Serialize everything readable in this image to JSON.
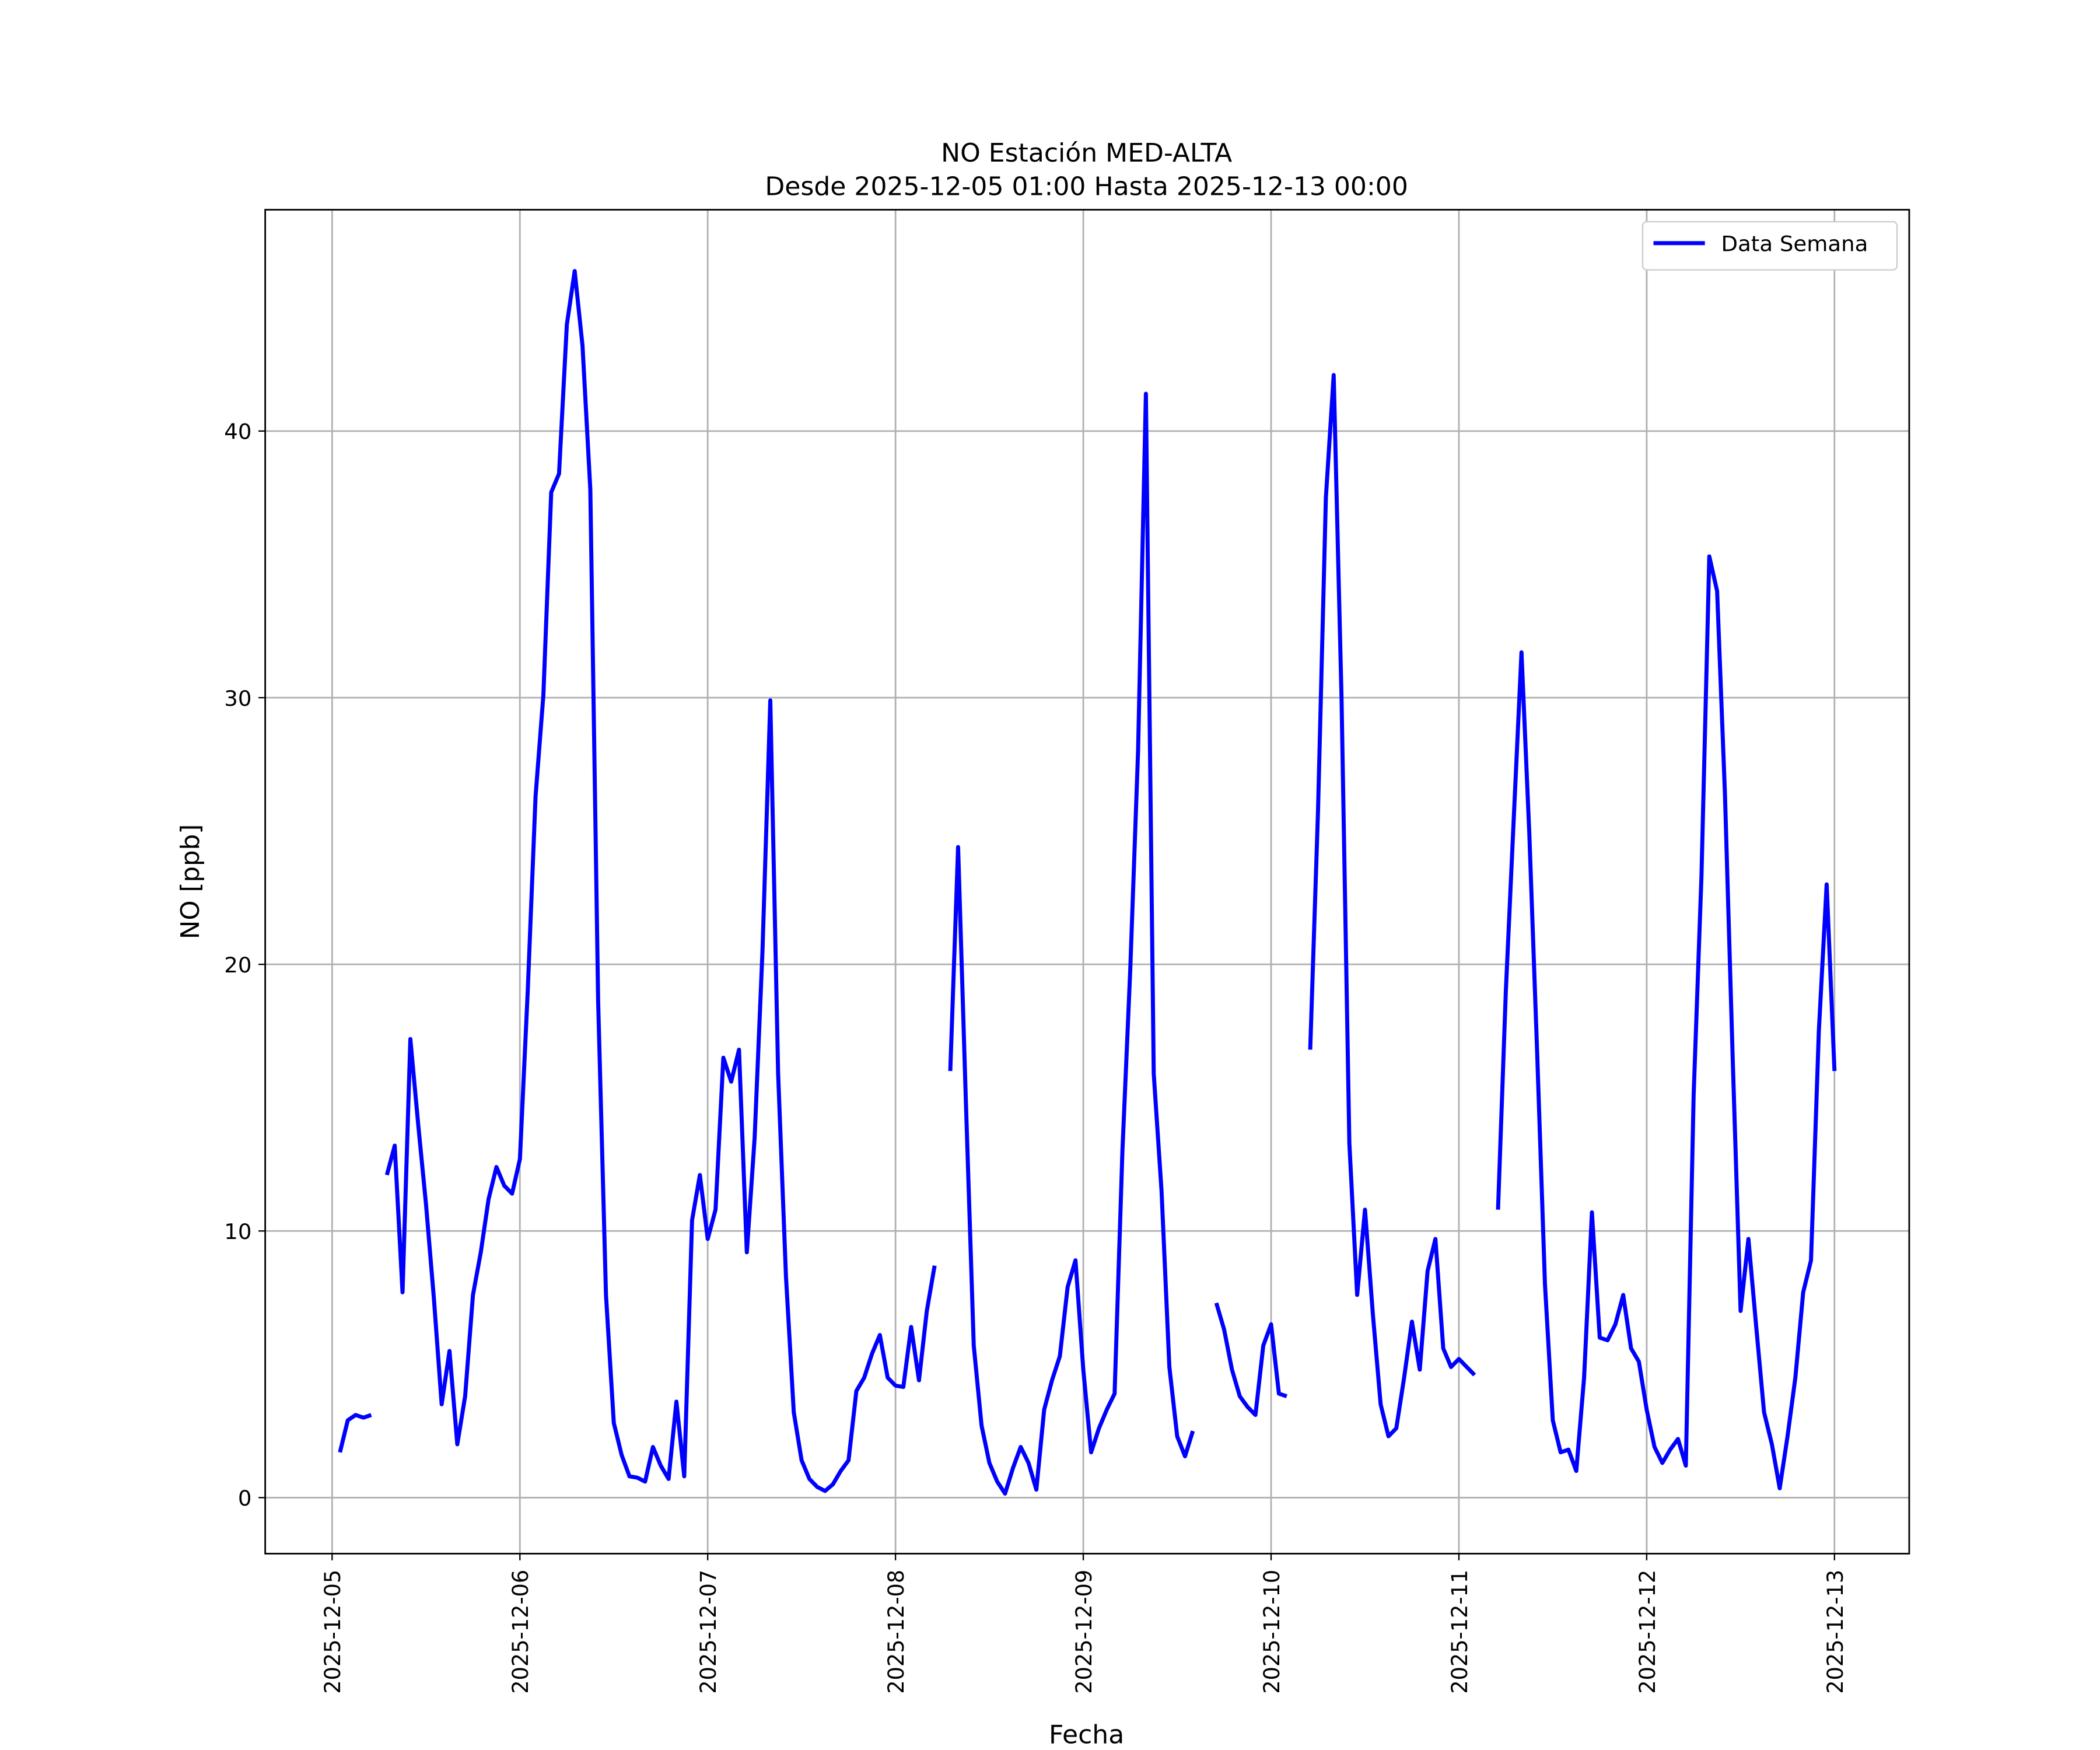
{
  "chart_data": {
    "type": "line",
    "title": "NO Estación MED-ALTA",
    "subtitle": "Desde 2025-12-05 01:00 Hasta 2025-12-13 00:00",
    "xlabel": "Fecha",
    "ylabel": "NO [ppb]",
    "x": [
      "2025-12-05 01:00",
      "2025-12-05 02:00",
      "2025-12-05 03:00",
      "2025-12-05 04:00",
      "2025-12-05 05:00",
      "2025-12-05 06:00",
      "2025-12-05 07:00",
      "2025-12-05 08:00",
      "2025-12-05 09:00",
      "2025-12-05 10:00",
      "2025-12-05 11:00",
      "2025-12-05 12:00",
      "2025-12-05 13:00",
      "2025-12-05 14:00",
      "2025-12-05 15:00",
      "2025-12-05 16:00",
      "2025-12-05 17:00",
      "2025-12-05 18:00",
      "2025-12-05 19:00",
      "2025-12-05 20:00",
      "2025-12-05 21:00",
      "2025-12-05 22:00",
      "2025-12-05 23:00",
      "2025-12-06 00:00",
      "2025-12-06 01:00",
      "2025-12-06 02:00",
      "2025-12-06 03:00",
      "2025-12-06 04:00",
      "2025-12-06 05:00",
      "2025-12-06 06:00",
      "2025-12-06 07:00",
      "2025-12-06 08:00",
      "2025-12-06 09:00",
      "2025-12-06 10:00",
      "2025-12-06 11:00",
      "2025-12-06 12:00",
      "2025-12-06 13:00",
      "2025-12-06 14:00",
      "2025-12-06 15:00",
      "2025-12-06 16:00",
      "2025-12-06 17:00",
      "2025-12-06 18:00",
      "2025-12-06 19:00",
      "2025-12-06 20:00",
      "2025-12-06 21:00",
      "2025-12-06 22:00",
      "2025-12-06 23:00",
      "2025-12-07 00:00",
      "2025-12-07 01:00",
      "2025-12-07 02:00",
      "2025-12-07 03:00",
      "2025-12-07 04:00",
      "2025-12-07 05:00",
      "2025-12-07 06:00",
      "2025-12-07 07:00",
      "2025-12-07 08:00",
      "2025-12-07 09:00",
      "2025-12-07 10:00",
      "2025-12-07 11:00",
      "2025-12-07 12:00",
      "2025-12-07 13:00",
      "2025-12-07 14:00",
      "2025-12-07 15:00",
      "2025-12-07 16:00",
      "2025-12-07 17:00",
      "2025-12-07 18:00",
      "2025-12-07 19:00",
      "2025-12-07 20:00",
      "2025-12-07 21:00",
      "2025-12-07 22:00",
      "2025-12-07 23:00",
      "2025-12-08 00:00",
      "2025-12-08 01:00",
      "2025-12-08 02:00",
      "2025-12-08 03:00",
      "2025-12-08 04:00",
      "2025-12-08 05:00",
      "2025-12-08 06:00",
      "2025-12-08 07:00",
      "2025-12-08 08:00",
      "2025-12-08 09:00",
      "2025-12-08 10:00",
      "2025-12-08 11:00",
      "2025-12-08 12:00",
      "2025-12-08 13:00",
      "2025-12-08 14:00",
      "2025-12-08 15:00",
      "2025-12-08 16:00",
      "2025-12-08 17:00",
      "2025-12-08 18:00",
      "2025-12-08 19:00",
      "2025-12-08 20:00",
      "2025-12-08 21:00",
      "2025-12-08 22:00",
      "2025-12-08 23:00",
      "2025-12-09 00:00",
      "2025-12-09 01:00",
      "2025-12-09 02:00",
      "2025-12-09 03:00",
      "2025-12-09 04:00",
      "2025-12-09 05:00",
      "2025-12-09 06:00",
      "2025-12-09 07:00",
      "2025-12-09 08:00",
      "2025-12-09 09:00",
      "2025-12-09 10:00",
      "2025-12-09 11:00",
      "2025-12-09 12:00",
      "2025-12-09 13:00",
      "2025-12-09 14:00",
      "2025-12-09 15:00",
      "2025-12-09 16:00",
      "2025-12-09 17:00",
      "2025-12-09 18:00",
      "2025-12-09 19:00",
      "2025-12-09 20:00",
      "2025-12-09 21:00",
      "2025-12-09 22:00",
      "2025-12-09 23:00",
      "2025-12-10 00:00",
      "2025-12-10 01:00",
      "2025-12-10 02:00",
      "2025-12-10 03:00",
      "2025-12-10 04:00",
      "2025-12-10 05:00",
      "2025-12-10 06:00",
      "2025-12-10 07:00",
      "2025-12-10 08:00",
      "2025-12-10 09:00",
      "2025-12-10 10:00",
      "2025-12-10 11:00",
      "2025-12-10 12:00",
      "2025-12-10 13:00",
      "2025-12-10 14:00",
      "2025-12-10 15:00",
      "2025-12-10 16:00",
      "2025-12-10 17:00",
      "2025-12-10 18:00",
      "2025-12-10 19:00",
      "2025-12-10 20:00",
      "2025-12-10 21:00",
      "2025-12-10 22:00",
      "2025-12-10 23:00",
      "2025-12-11 00:00",
      "2025-12-11 01:00",
      "2025-12-11 02:00",
      "2025-12-11 03:00",
      "2025-12-11 04:00",
      "2025-12-11 05:00",
      "2025-12-11 06:00",
      "2025-12-11 07:00",
      "2025-12-11 08:00",
      "2025-12-11 09:00",
      "2025-12-11 10:00",
      "2025-12-11 11:00",
      "2025-12-11 12:00",
      "2025-12-11 13:00",
      "2025-12-11 14:00",
      "2025-12-11 15:00",
      "2025-12-11 16:00",
      "2025-12-11 17:00",
      "2025-12-11 18:00",
      "2025-12-11 19:00",
      "2025-12-11 20:00",
      "2025-12-11 21:00",
      "2025-12-11 22:00",
      "2025-12-11 23:00",
      "2025-12-12 00:00",
      "2025-12-12 01:00",
      "2025-12-12 02:00",
      "2025-12-12 03:00",
      "2025-12-12 04:00",
      "2025-12-12 05:00",
      "2025-12-12 06:00",
      "2025-12-12 07:00",
      "2025-12-12 08:00",
      "2025-12-12 09:00",
      "2025-12-12 10:00",
      "2025-12-12 11:00",
      "2025-12-12 12:00",
      "2025-12-12 13:00",
      "2025-12-12 14:00",
      "2025-12-12 15:00",
      "2025-12-12 16:00",
      "2025-12-12 17:00",
      "2025-12-12 18:00",
      "2025-12-12 19:00",
      "2025-12-12 20:00",
      "2025-12-12 21:00",
      "2025-12-12 22:00",
      "2025-12-12 23:00",
      "2025-12-13 00:00"
    ],
    "series": [
      {
        "name": "Data Semana",
        "color": "#0000ff",
        "values": [
          1.7,
          2.9,
          3.1,
          3.0,
          3.1,
          null,
          12.1,
          13.2,
          7.7,
          17.2,
          14.0,
          11.0,
          7.5,
          3.5,
          5.5,
          2.0,
          3.8,
          7.6,
          9.2,
          11.2,
          12.4,
          11.7,
          11.4,
          12.7,
          19.0,
          26.3,
          30.1,
          37.7,
          38.4,
          44.0,
          46.0,
          43.2,
          37.8,
          18.6,
          7.6,
          2.8,
          1.6,
          0.8,
          0.75,
          0.6,
          1.9,
          1.2,
          0.7,
          3.6,
          0.8,
          10.4,
          12.1,
          9.7,
          10.8,
          16.5,
          15.6,
          16.8,
          9.2,
          13.5,
          20.5,
          29.9,
          15.9,
          8.3,
          3.2,
          1.4,
          0.7,
          0.4,
          0.25,
          0.5,
          1.0,
          1.4,
          4.0,
          4.5,
          5.4,
          6.1,
          4.5,
          4.2,
          4.15,
          6.4,
          4.4,
          7.0,
          8.7,
          null,
          16.0,
          24.4,
          14.8,
          5.7,
          2.7,
          1.3,
          0.6,
          0.15,
          1.1,
          1.9,
          1.3,
          0.3,
          3.3,
          4.4,
          5.3,
          7.9,
          8.9,
          4.8,
          1.7,
          2.6,
          3.3,
          3.9,
          13.0,
          19.8,
          28.0,
          41.4,
          15.9,
          11.5,
          4.9,
          2.3,
          1.55,
          2.5,
          null,
          null,
          7.3,
          6.3,
          4.8,
          3.8,
          3.4,
          3.1,
          5.7,
          6.5,
          3.9,
          3.8,
          null,
          null,
          16.8,
          25.8,
          37.5,
          42.1,
          30.0,
          13.3,
          7.6,
          10.8,
          6.9,
          3.5,
          2.3,
          2.6,
          4.5,
          6.6,
          4.8,
          8.5,
          9.7,
          5.6,
          4.9,
          5.2,
          4.9,
          4.6,
          null,
          null,
          10.8,
          19.0,
          25.4,
          31.7,
          24.9,
          16.7,
          8.0,
          2.9,
          1.7,
          1.8,
          1.0,
          4.5,
          10.7,
          6.0,
          5.9,
          6.5,
          7.6,
          5.6,
          5.1,
          3.3,
          1.9,
          1.3,
          1.8,
          2.2,
          1.2,
          15.1,
          23.3,
          35.3,
          34.0,
          26.4,
          16.4,
          7.0,
          9.7,
          6.4,
          3.2,
          2.0,
          0.35,
          2.3,
          4.5,
          7.7,
          8.9,
          17.5,
          23.0,
          16.0
        ]
      }
    ],
    "xlim": [
      "2025-12-04 15:27",
      "2025-12-13 09:33"
    ],
    "xticks": [
      "2025-12-05",
      "2025-12-06",
      "2025-12-07",
      "2025-12-08",
      "2025-12-09",
      "2025-12-10",
      "2025-12-11",
      "2025-12-12",
      "2025-12-13"
    ],
    "ylim": [
      -2.1,
      48.3
    ],
    "yticks": [
      0,
      10,
      20,
      30,
      40
    ],
    "grid": true,
    "legend": "upper right"
  }
}
